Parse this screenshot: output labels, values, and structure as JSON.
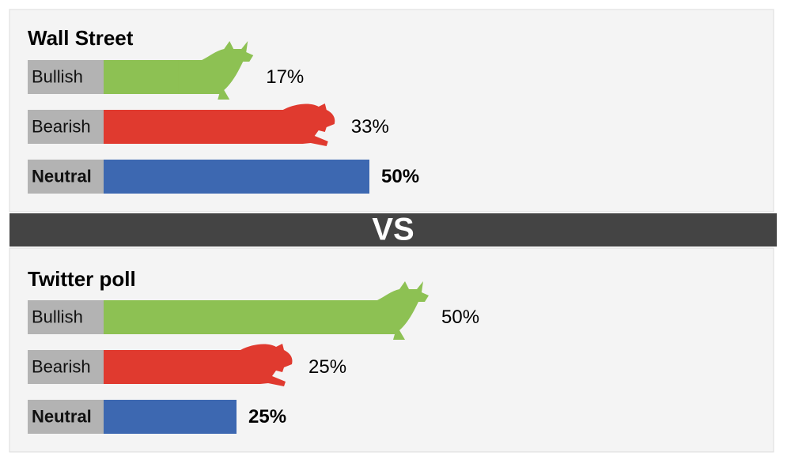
{
  "chart_data": [
    {
      "type": "bar",
      "title": "Wall Street",
      "categories": [
        "Bullish",
        "Bearish",
        "Neutral"
      ],
      "values": [
        17,
        33,
        50
      ],
      "value_labels": [
        "17%",
        "33%",
        "50%"
      ],
      "colors": [
        "#8dc153",
        "#e03a2f",
        "#3d68b1"
      ]
    },
    {
      "type": "bar",
      "title": "Twitter poll",
      "categories": [
        "Bullish",
        "Bearish",
        "Neutral"
      ],
      "values": [
        50,
        25,
        25
      ],
      "value_labels": [
        "50%",
        "25%",
        "25%"
      ],
      "colors": [
        "#8dc153",
        "#e03a2f",
        "#3d68b1"
      ]
    }
  ],
  "divider": "VS"
}
